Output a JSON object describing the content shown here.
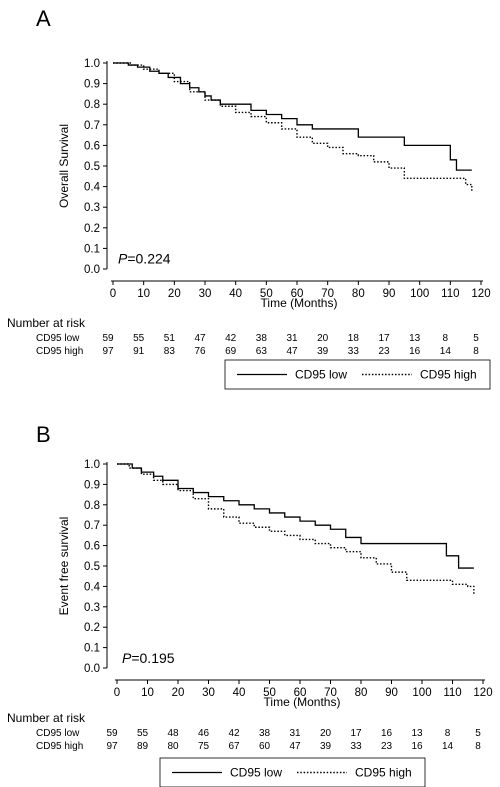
{
  "chart_data": [
    {
      "type": "line",
      "panel_label": "A",
      "xlabel": "Time (Months)",
      "ylabel": "Overall Survival",
      "xlim": [
        0,
        120
      ],
      "ylim": [
        0,
        1
      ],
      "x_ticks": [
        "0",
        "10",
        "20",
        "30",
        "40",
        "50",
        "60",
        "70",
        "80",
        "90",
        "100",
        "110",
        "120"
      ],
      "y_ticks": [
        "0.0",
        "0.1",
        "0.2",
        "0.3",
        "0.4",
        "0.5",
        "0.6",
        "0.7",
        "0.8",
        "0.9",
        "1.0"
      ],
      "grid": false,
      "legend_position": "bottom",
      "p_label": "P",
      "p_value": "=0.224",
      "series": [
        {
          "name": "CD95 low",
          "style": "solid",
          "color": "#000000",
          "x": [
            0,
            5,
            8,
            12,
            15,
            18,
            22,
            25,
            28,
            30,
            32,
            35,
            45,
            50,
            55,
            60,
            65,
            70,
            80,
            95,
            110,
            112,
            117
          ],
          "y": [
            1.0,
            0.99,
            0.98,
            0.96,
            0.95,
            0.93,
            0.9,
            0.88,
            0.86,
            0.84,
            0.82,
            0.8,
            0.77,
            0.75,
            0.73,
            0.7,
            0.68,
            0.68,
            0.64,
            0.6,
            0.53,
            0.48,
            0.48
          ]
        },
        {
          "name": "CD95 high",
          "style": "dotted",
          "color": "#000000",
          "x": [
            0,
            3,
            6,
            10,
            15,
            20,
            25,
            30,
            35,
            40,
            45,
            50,
            55,
            60,
            65,
            70,
            75,
            80,
            85,
            90,
            95,
            100,
            105,
            110,
            115,
            117
          ],
          "y": [
            1.0,
            1.0,
            0.99,
            0.97,
            0.95,
            0.91,
            0.86,
            0.82,
            0.79,
            0.76,
            0.74,
            0.71,
            0.68,
            0.64,
            0.61,
            0.59,
            0.56,
            0.55,
            0.52,
            0.49,
            0.44,
            0.44,
            0.44,
            0.44,
            0.41,
            0.38
          ]
        }
      ],
      "risk_table": {
        "title": "Number at risk",
        "rows": [
          {
            "label": "CD95 low",
            "values": [
              "59",
              "55",
              "51",
              "47",
              "42",
              "38",
              "31",
              "20",
              "18",
              "17",
              "13",
              "8",
              "5"
            ]
          },
          {
            "label": "CD95 high",
            "values": [
              "97",
              "91",
              "83",
              "76",
              "69",
              "63",
              "47",
              "39",
              "33",
              "23",
              "16",
              "14",
              "8"
            ]
          }
        ]
      }
    },
    {
      "type": "line",
      "panel_label": "B",
      "xlabel": "Time (Months)",
      "ylabel": "Event free survival",
      "xlim": [
        0,
        120
      ],
      "ylim": [
        0,
        1
      ],
      "x_ticks": [
        "0",
        "10",
        "20",
        "30",
        "40",
        "50",
        "60",
        "70",
        "80",
        "90",
        "100",
        "110",
        "120"
      ],
      "y_ticks": [
        "0.0",
        "0.1",
        "0.2",
        "0.3",
        "0.4",
        "0.5",
        "0.6",
        "0.7",
        "0.8",
        "0.9",
        "1.0"
      ],
      "grid": false,
      "legend_position": "bottom",
      "p_label": "P",
      "p_value": "=0.195",
      "series": [
        {
          "name": "CD95 low",
          "style": "solid",
          "color": "#000000",
          "x": [
            0,
            5,
            8,
            12,
            15,
            20,
            25,
            30,
            35,
            40,
            45,
            50,
            55,
            60,
            65,
            70,
            75,
            80,
            85,
            90,
            100,
            108,
            112,
            117
          ],
          "y": [
            1.0,
            0.98,
            0.96,
            0.94,
            0.92,
            0.88,
            0.86,
            0.84,
            0.82,
            0.8,
            0.78,
            0.76,
            0.74,
            0.72,
            0.7,
            0.68,
            0.64,
            0.61,
            0.61,
            0.61,
            0.61,
            0.55,
            0.49,
            0.49
          ]
        },
        {
          "name": "CD95 high",
          "style": "dotted",
          "color": "#000000",
          "x": [
            0,
            4,
            8,
            12,
            15,
            20,
            25,
            30,
            35,
            40,
            45,
            50,
            55,
            60,
            65,
            70,
            75,
            80,
            85,
            90,
            95,
            100,
            105,
            110,
            115,
            117
          ],
          "y": [
            1.0,
            0.98,
            0.95,
            0.92,
            0.9,
            0.87,
            0.83,
            0.78,
            0.74,
            0.71,
            0.69,
            0.67,
            0.65,
            0.63,
            0.61,
            0.59,
            0.57,
            0.54,
            0.51,
            0.47,
            0.43,
            0.43,
            0.43,
            0.41,
            0.4,
            0.36
          ]
        }
      ],
      "risk_table": {
        "title": "Number at risk",
        "rows": [
          {
            "label": "CD95 low",
            "values": [
              "59",
              "55",
              "48",
              "46",
              "42",
              "38",
              "31",
              "20",
              "17",
              "16",
              "13",
              "8",
              "5"
            ]
          },
          {
            "label": "CD95 high",
            "values": [
              "97",
              "89",
              "80",
              "75",
              "67",
              "60",
              "47",
              "39",
              "33",
              "23",
              "16",
              "14",
              "8"
            ]
          }
        ]
      }
    }
  ]
}
